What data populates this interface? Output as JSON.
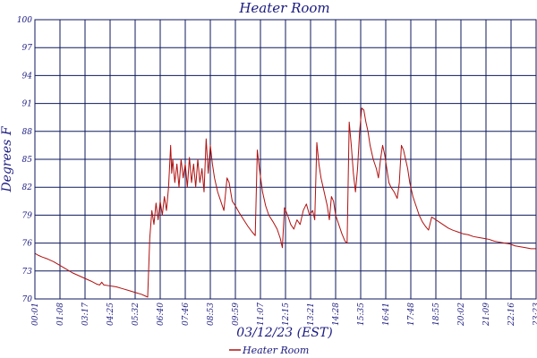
{
  "chart_data": {
    "type": "line",
    "title": "Heater Room",
    "xlabel": "03/12/23 (EST)",
    "ylabel": "Degrees F",
    "ylim": [
      70,
      100
    ],
    "grid": true,
    "legend_position": "bottom-center",
    "y_tick_labels": [
      "100",
      "97",
      "94",
      "91",
      "88",
      "85",
      "82",
      "79",
      "76",
      "73",
      "70"
    ],
    "x_tick_labels": [
      "00:01",
      "01:08",
      "03:17",
      "04:25",
      "05:32",
      "06:40",
      "07:46",
      "08:53",
      "09:59",
      "11:07",
      "12:15",
      "13:21",
      "14:28",
      "15:35",
      "16:41",
      "17:48",
      "18:55",
      "20:02",
      "21:09",
      "22:16",
      "23:23"
    ],
    "x_range_hours": [
      0,
      24
    ],
    "series": [
      {
        "name": "Heater Room",
        "color": "#b01010",
        "points": [
          [
            0.0,
            74.9
          ],
          [
            0.15,
            74.7
          ],
          [
            0.35,
            74.5
          ],
          [
            0.6,
            74.3
          ],
          [
            0.9,
            74.0
          ],
          [
            1.2,
            73.6
          ],
          [
            1.5,
            73.2
          ],
          [
            1.8,
            72.8
          ],
          [
            2.1,
            72.5
          ],
          [
            2.4,
            72.2
          ],
          [
            2.7,
            71.9
          ],
          [
            2.95,
            71.6
          ],
          [
            3.1,
            71.5
          ],
          [
            3.2,
            71.8
          ],
          [
            3.3,
            71.5
          ],
          [
            3.6,
            71.4
          ],
          [
            3.9,
            71.3
          ],
          [
            4.2,
            71.1
          ],
          [
            4.5,
            70.9
          ],
          [
            4.8,
            70.7
          ],
          [
            5.1,
            70.5
          ],
          [
            5.3,
            70.3
          ],
          [
            5.4,
            70.2
          ],
          [
            5.5,
            76.5
          ],
          [
            5.6,
            79.5
          ],
          [
            5.7,
            78.0
          ],
          [
            5.8,
            80.3
          ],
          [
            5.9,
            78.5
          ],
          [
            6.0,
            80.5
          ],
          [
            6.1,
            79.0
          ],
          [
            6.2,
            81.0
          ],
          [
            6.3,
            79.5
          ],
          [
            6.4,
            82.0
          ],
          [
            6.5,
            86.5
          ],
          [
            6.55,
            83.5
          ],
          [
            6.6,
            85.0
          ],
          [
            6.7,
            82.5
          ],
          [
            6.8,
            84.5
          ],
          [
            6.9,
            82.0
          ],
          [
            7.0,
            85.0
          ],
          [
            7.1,
            83.0
          ],
          [
            7.2,
            84.5
          ],
          [
            7.3,
            82.0
          ],
          [
            7.4,
            85.2
          ],
          [
            7.5,
            82.5
          ],
          [
            7.6,
            84.5
          ],
          [
            7.7,
            82.0
          ],
          [
            7.8,
            85.0
          ],
          [
            7.9,
            82.5
          ],
          [
            8.0,
            84.0
          ],
          [
            8.1,
            81.5
          ],
          [
            8.2,
            87.2
          ],
          [
            8.3,
            83.5
          ],
          [
            8.4,
            86.5
          ],
          [
            8.5,
            84.5
          ],
          [
            8.6,
            83.0
          ],
          [
            8.75,
            81.5
          ],
          [
            8.9,
            80.5
          ],
          [
            9.05,
            79.5
          ],
          [
            9.2,
            83.0
          ],
          [
            9.3,
            82.5
          ],
          [
            9.45,
            80.5
          ],
          [
            9.6,
            80.0
          ],
          [
            9.8,
            79.2
          ],
          [
            10.0,
            78.5
          ],
          [
            10.2,
            77.8
          ],
          [
            10.4,
            77.2
          ],
          [
            10.55,
            76.8
          ],
          [
            10.65,
            86.0
          ],
          [
            10.75,
            84.0
          ],
          [
            10.9,
            81.5
          ],
          [
            11.05,
            80.0
          ],
          [
            11.2,
            79.0
          ],
          [
            11.4,
            78.3
          ],
          [
            11.6,
            77.5
          ],
          [
            11.75,
            76.5
          ],
          [
            11.85,
            75.5
          ],
          [
            11.95,
            79.8
          ],
          [
            12.1,
            79.0
          ],
          [
            12.25,
            78.0
          ],
          [
            12.4,
            77.5
          ],
          [
            12.55,
            78.5
          ],
          [
            12.7,
            78.0
          ],
          [
            12.85,
            79.5
          ],
          [
            13.0,
            80.2
          ],
          [
            13.15,
            79.0
          ],
          [
            13.3,
            79.5
          ],
          [
            13.4,
            78.5
          ],
          [
            13.5,
            86.8
          ],
          [
            13.6,
            84.5
          ],
          [
            13.7,
            83.0
          ],
          [
            13.85,
            81.5
          ],
          [
            14.0,
            80.0
          ],
          [
            14.1,
            78.5
          ],
          [
            14.2,
            81.0
          ],
          [
            14.3,
            80.5
          ],
          [
            14.4,
            79.0
          ],
          [
            14.55,
            78.0
          ],
          [
            14.7,
            77.0
          ],
          [
            14.85,
            76.2
          ],
          [
            14.95,
            76.0
          ],
          [
            15.05,
            89.0
          ],
          [
            15.15,
            86.5
          ],
          [
            15.25,
            83.5
          ],
          [
            15.35,
            81.5
          ],
          [
            15.45,
            84.0
          ],
          [
            15.55,
            88.0
          ],
          [
            15.65,
            90.5
          ],
          [
            15.75,
            90.3
          ],
          [
            15.85,
            89.0
          ],
          [
            15.95,
            88.0
          ],
          [
            16.05,
            86.5
          ],
          [
            16.2,
            85.0
          ],
          [
            16.35,
            84.0
          ],
          [
            16.45,
            83.0
          ],
          [
            16.55,
            85.0
          ],
          [
            16.65,
            86.5
          ],
          [
            16.75,
            85.5
          ],
          [
            16.85,
            84.0
          ],
          [
            16.95,
            82.5
          ],
          [
            17.05,
            82.0
          ],
          [
            17.2,
            81.5
          ],
          [
            17.35,
            80.8
          ],
          [
            17.45,
            82.5
          ],
          [
            17.55,
            86.5
          ],
          [
            17.65,
            86.0
          ],
          [
            17.75,
            85.0
          ],
          [
            17.85,
            84.0
          ],
          [
            17.95,
            82.5
          ],
          [
            18.1,
            81.0
          ],
          [
            18.25,
            80.0
          ],
          [
            18.4,
            79.0
          ],
          [
            18.55,
            78.3
          ],
          [
            18.7,
            77.8
          ],
          [
            18.85,
            77.4
          ],
          [
            19.0,
            78.8
          ],
          [
            19.2,
            78.5
          ],
          [
            19.4,
            78.2
          ],
          [
            19.6,
            77.9
          ],
          [
            19.8,
            77.6
          ],
          [
            20.0,
            77.4
          ],
          [
            20.25,
            77.2
          ],
          [
            20.5,
            77.0
          ],
          [
            20.75,
            76.9
          ],
          [
            21.0,
            76.7
          ],
          [
            21.25,
            76.6
          ],
          [
            21.5,
            76.5
          ],
          [
            21.75,
            76.4
          ],
          [
            22.0,
            76.2
          ],
          [
            22.25,
            76.1
          ],
          [
            22.5,
            76.0
          ],
          [
            22.75,
            75.9
          ],
          [
            23.0,
            75.7
          ],
          [
            23.25,
            75.6
          ],
          [
            23.5,
            75.5
          ],
          [
            23.75,
            75.4
          ],
          [
            24.0,
            75.4
          ]
        ]
      }
    ]
  }
}
